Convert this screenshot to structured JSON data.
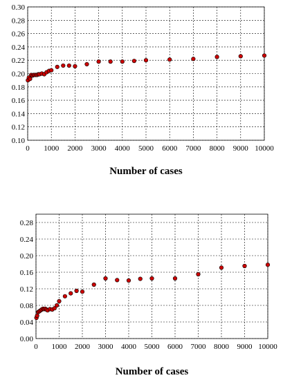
{
  "chart_data": [
    {
      "type": "scatter",
      "title": "",
      "xlabel": "Number of cases",
      "ylabel": "",
      "xlim": [
        0,
        10000
      ],
      "ylim": [
        0.1,
        0.3
      ],
      "x_ticks": [
        "0",
        "1000",
        "2000",
        "3000",
        "4000",
        "5000",
        "6000",
        "7000",
        "8000",
        "9000",
        "10000"
      ],
      "y_ticks": [
        "0.10",
        "0.12",
        "0.14",
        "0.16",
        "0.18",
        "0.20",
        "0.22",
        "0.24",
        "0.26",
        "0.28",
        "0.30"
      ],
      "grid": true,
      "marker_color": "#cc0000",
      "points": [
        {
          "x": 10,
          "y": 0.19
        },
        {
          "x": 50,
          "y": 0.194
        },
        {
          "x": 100,
          "y": 0.192
        },
        {
          "x": 150,
          "y": 0.198
        },
        {
          "x": 200,
          "y": 0.197
        },
        {
          "x": 250,
          "y": 0.198
        },
        {
          "x": 300,
          "y": 0.198
        },
        {
          "x": 350,
          "y": 0.198
        },
        {
          "x": 400,
          "y": 0.198
        },
        {
          "x": 450,
          "y": 0.199
        },
        {
          "x": 500,
          "y": 0.199
        },
        {
          "x": 600,
          "y": 0.2
        },
        {
          "x": 700,
          "y": 0.199
        },
        {
          "x": 800,
          "y": 0.202
        },
        {
          "x": 900,
          "y": 0.204
        },
        {
          "x": 1000,
          "y": 0.205
        },
        {
          "x": 1250,
          "y": 0.21
        },
        {
          "x": 1500,
          "y": 0.212
        },
        {
          "x": 1750,
          "y": 0.212
        },
        {
          "x": 2000,
          "y": 0.211
        },
        {
          "x": 2500,
          "y": 0.214
        },
        {
          "x": 3000,
          "y": 0.218
        },
        {
          "x": 3500,
          "y": 0.218
        },
        {
          "x": 4000,
          "y": 0.218
        },
        {
          "x": 4500,
          "y": 0.219
        },
        {
          "x": 5000,
          "y": 0.22
        },
        {
          "x": 6000,
          "y": 0.221
        },
        {
          "x": 7000,
          "y": 0.222
        },
        {
          "x": 8000,
          "y": 0.225
        },
        {
          "x": 9000,
          "y": 0.226
        },
        {
          "x": 10000,
          "y": 0.227
        }
      ]
    },
    {
      "type": "scatter",
      "title": "",
      "xlabel": "Number of cases",
      "ylabel": "",
      "xlim": [
        0,
        10000
      ],
      "ylim": [
        0.0,
        0.3
      ],
      "x_ticks": [
        "0",
        "1000",
        "2000",
        "3000",
        "4000",
        "5000",
        "6000",
        "7000",
        "8000",
        "9000",
        "10000"
      ],
      "y_ticks": [
        "0.00",
        "0.04",
        "0.08",
        "0.12",
        "0.16",
        "0.20",
        "0.24",
        "0.28"
      ],
      "grid": true,
      "marker_color": "#cc0000",
      "points": [
        {
          "x": 20,
          "y": 0.05
        },
        {
          "x": 50,
          "y": 0.055
        },
        {
          "x": 100,
          "y": 0.064
        },
        {
          "x": 150,
          "y": 0.066
        },
        {
          "x": 200,
          "y": 0.068
        },
        {
          "x": 250,
          "y": 0.07
        },
        {
          "x": 300,
          "y": 0.072
        },
        {
          "x": 350,
          "y": 0.071
        },
        {
          "x": 400,
          "y": 0.072
        },
        {
          "x": 450,
          "y": 0.07
        },
        {
          "x": 500,
          "y": 0.068
        },
        {
          "x": 600,
          "y": 0.071
        },
        {
          "x": 700,
          "y": 0.07
        },
        {
          "x": 800,
          "y": 0.073
        },
        {
          "x": 900,
          "y": 0.08
        },
        {
          "x": 1000,
          "y": 0.09
        },
        {
          "x": 1250,
          "y": 0.102
        },
        {
          "x": 1500,
          "y": 0.109
        },
        {
          "x": 1750,
          "y": 0.115
        },
        {
          "x": 2000,
          "y": 0.113
        },
        {
          "x": 2500,
          "y": 0.13
        },
        {
          "x": 3000,
          "y": 0.145
        },
        {
          "x": 3500,
          "y": 0.141
        },
        {
          "x": 4000,
          "y": 0.14
        },
        {
          "x": 4500,
          "y": 0.144
        },
        {
          "x": 5000,
          "y": 0.145
        },
        {
          "x": 6000,
          "y": 0.145
        },
        {
          "x": 7000,
          "y": 0.155
        },
        {
          "x": 8000,
          "y": 0.171
        },
        {
          "x": 9000,
          "y": 0.175
        },
        {
          "x": 10000,
          "y": 0.178
        }
      ]
    }
  ]
}
